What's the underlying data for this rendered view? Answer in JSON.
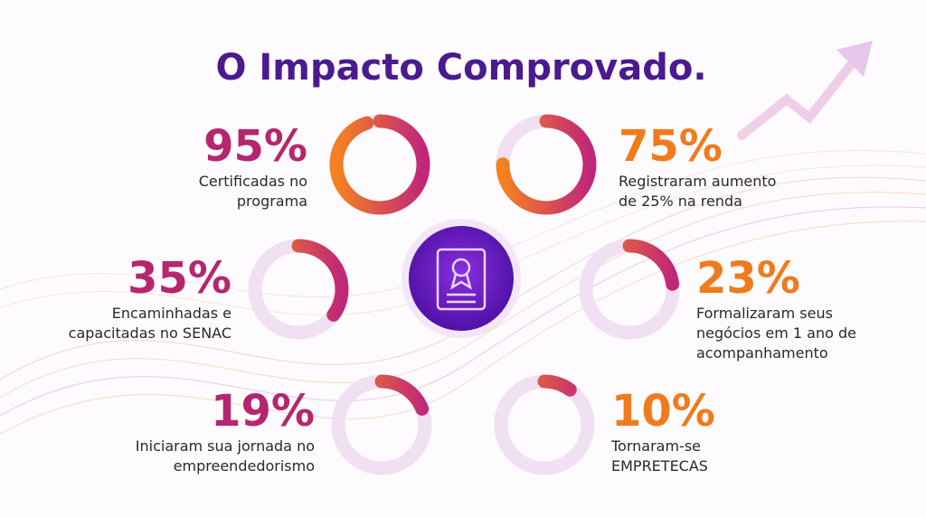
{
  "title": "O Impacto Comprovado.",
  "stats": [
    {
      "value": 95,
      "value_label": "95%",
      "lines": [
        "Certificadas no",
        "programa"
      ]
    },
    {
      "value": 75,
      "value_label": "75%",
      "lines": [
        "Registraram aumento",
        "de 25% na renda"
      ]
    },
    {
      "value": 35,
      "value_label": "35%",
      "lines": [
        "Encaminhadas e",
        "capacitadas no SENAC"
      ]
    },
    {
      "value": 23,
      "value_label": "23%",
      "lines": [
        "Formalizaram seus",
        "negócios em 1 ano de",
        "acompanhamento"
      ]
    },
    {
      "value": 19,
      "value_label": "19%",
      "lines": [
        "Iniciaram sua jornada no",
        "empreendedorismo"
      ]
    },
    {
      "value": 10,
      "value_label": "10%",
      "lines": [
        "Tornaram-se",
        "EMPRETECAS"
      ]
    }
  ]
}
